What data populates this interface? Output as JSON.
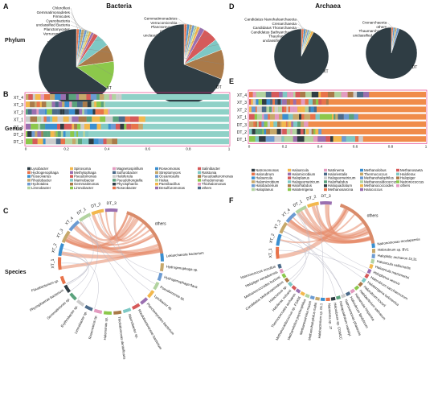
{
  "panel_letters": {
    "A": "A",
    "B": "B",
    "C": "C",
    "D": "D",
    "E": "E",
    "F": "F"
  },
  "headers": {
    "bacteria": "Bacteria",
    "archaea": "Archaea"
  },
  "row_labels": {
    "phylum": "Phylum",
    "genus": "Genus",
    "species": "Species"
  },
  "colors": {
    "palette": [
      "#2f3d44",
      "#e8734a",
      "#3a8fd0",
      "#c6a86b",
      "#6c9bd2",
      "#b2d3a0",
      "#f3b84d",
      "#9a6fb0",
      "#d65a5a",
      "#7ec8c4",
      "#aa7a49",
      "#8cc84b",
      "#e39bc0",
      "#4c6b8a",
      "#cccccc",
      "#5aa27c"
    ],
    "bar_bg": "#8fd1c7",
    "frame": "#e0237a"
  },
  "chart_data": [
    {
      "type": "pie",
      "name": "XT",
      "title": "XT",
      "labels": [
        "Chloroflexi",
        "Gemmatimonadetes",
        "Firmicutes",
        "Cyanobacteria",
        "unclassified Bacteria",
        "Planctomycetes",
        "Verrucomicrobia",
        "others",
        "Bacteroidetes",
        "Actinobacteria",
        "Proteobacteria",
        "Bacteria dominant"
      ],
      "values": [
        1.2,
        1.0,
        1.3,
        1.1,
        1.0,
        1.0,
        1.1,
        2.0,
        5.5,
        7.5,
        12.0,
        65.3
      ]
    },
    {
      "type": "pie",
      "name": "DT",
      "title": "DT",
      "labels": [
        "Gemmatimonadetes",
        "Verrucomicrobia",
        "Planctomycetes",
        "Chloroflexi",
        "unclassified Bacteria",
        "Cyanobacteria",
        "others",
        "Actinobacteria",
        "Firmicutes",
        "Proteobacteria",
        "Bacteria dominant"
      ],
      "values": [
        1.2,
        1.0,
        1.1,
        1.0,
        1.0,
        1.2,
        2.0,
        6.0,
        4.5,
        12.0,
        69.0
      ]
    },
    {
      "type": "pie",
      "name": "XT",
      "title": "XT",
      "labels": [
        "Candidatus Nanohaloarchaeota",
        "Crenarchaeota",
        "Candidatus Thorarchaeota",
        "Candidatus Bathyarchaeota",
        "Thaumarchaeota",
        "unclassified Archaea",
        "Euryarchaeota"
      ],
      "values": [
        1.5,
        1.2,
        1.0,
        1.0,
        1.3,
        1.5,
        92.5
      ]
    },
    {
      "type": "pie",
      "name": "DT",
      "title": "DT",
      "labels": [
        "Crenarchaeota",
        "others",
        "Thaumarchaeota",
        "unclassified Archaea",
        "Euryarchaeota"
      ],
      "values": [
        1.2,
        1.0,
        1.3,
        1.5,
        95.0
      ]
    },
    {
      "type": "bar",
      "name": "bacteria-genus",
      "categories": [
        "XT_4",
        "XT_3",
        "XT_2",
        "XT_1",
        "DT_3",
        "DT_2",
        "DT_1"
      ],
      "xlim": [
        0,
        1
      ],
      "ticks": [
        "0",
        "0.2",
        "0.4",
        "0.6",
        "0.8",
        "1"
      ],
      "legend": [
        "Lysobacter",
        "Hydrogenophaga",
        "Roseovarius",
        "Rhodobacter",
        "Hydrotalea",
        "Limnobacter",
        "Spirosoma",
        "Methylophaga",
        "Pseudomonas",
        "Marinobacter",
        "Gemmatimonas",
        "Limnobacter",
        "Magnetospirillum",
        "Sulfurobacter",
        "Haloferula",
        "Pseudohongiella",
        "Phycisphaera",
        "Roseobacter",
        "Roseomonas",
        "Streptomyces",
        "Oceanicaulis",
        "Halea",
        "Paenibacillus",
        "Desulfuromonas",
        "Salinibacter",
        "Ralstonia",
        "Pseudoalteromonas",
        "Arhodomonas",
        "Thiohalomonas",
        "others"
      ]
    },
    {
      "type": "bar",
      "name": "archaea-genus",
      "categories": [
        "XT_4",
        "XT_3",
        "XT_2",
        "XT_1",
        "DT_3",
        "DT_2",
        "DT_1"
      ],
      "xlim": [
        0,
        1
      ],
      "ticks": [
        "0",
        "0.2",
        "0.4",
        "0.6",
        "0.8",
        "1"
      ],
      "legend": [
        "Natronomonas",
        "Halorubrum",
        "Haloarcula",
        "Halomicrobium",
        "Halobacterium",
        "Haloplanus",
        "Haloarcula",
        "Halomicrobium",
        "Haloplanus",
        "Halogeometricum",
        "Halorhabdus",
        "Haloterrigena",
        "Natrinema",
        "Halorientalis",
        "Halogeometricum",
        "Halorhabdus",
        "Haloquadratum",
        "Methanosarcina",
        "Methanolobus",
        "Thermococcus",
        "Methanohalophilus",
        "Methanocaldococcus",
        "Methanococcoides",
        "Halococcus",
        "Methanosaeta",
        "Haloferax",
        "Halopiger",
        "Natronococcus",
        "others"
      ]
    }
  ],
  "species_bacteria": {
    "groups": [
      "XT_1",
      "XT_2",
      "XT_3",
      "XT_4",
      "DT_1",
      "DT_2",
      "DT_3"
    ],
    "others": "others",
    "labels": [
      "Lokiarchaeota bacterium",
      "Hydrogenophaga sp.",
      "Hydrogenophaga flava",
      "Pseudomonas sp.",
      "Lysobacter sp.",
      "Planctomycetes bacterium",
      "Rhodobacteraceae bacterium",
      "Marinobacter sp.",
      "Thiohalomonas denitrificans",
      "Halomonas sp.",
      "Roseovarius sp.",
      "Limnobacter sp.",
      "Erythrobacter sp.",
      "Gemmatimonas sp.",
      "Phycisphaerae bacterium",
      "Flavobacterium sp."
    ]
  },
  "species_archaea": {
    "groups": [
      "XT_1",
      "XT_2",
      "XT_3",
      "XT_4",
      "DT_1",
      "DT_2",
      "DT_3"
    ],
    "others": "others",
    "labels": [
      "Natronomonas moolapensis",
      "Halorubrum sp. BV1",
      "Halophilic archaeon DL31",
      "Haloarcula vallismortis",
      "Haloarcula marismortui",
      "Haloplanus vescus",
      "Halorubrum saccharovorum",
      "Haloterrigena turkmenica",
      "Halorubrum kocurii",
      "Halobacterium salinarum",
      "Haloarcula hispanica",
      "Halorubrum lipolyticum",
      "Natronomonas pharaonis",
      "Haloquadratum walsbyi",
      "Halorubrum sp. CGMCC",
      "Natrinema sp. J7",
      "Halobacterium sp. DL1",
      "Methanohalophilus mahii",
      "Methanosarcina mazei",
      "Methanolobus psychrophilus",
      "Methanocaldococcus sp. FS406",
      "Thermococcales archaeon",
      "Haloferax volcanii",
      "Halococcus sp.",
      "Candidatus Methanoperedens",
      "Methanococcoides burtonii",
      "Halopiger xanaduensis",
      "Natronococcus occultus"
    ]
  }
}
